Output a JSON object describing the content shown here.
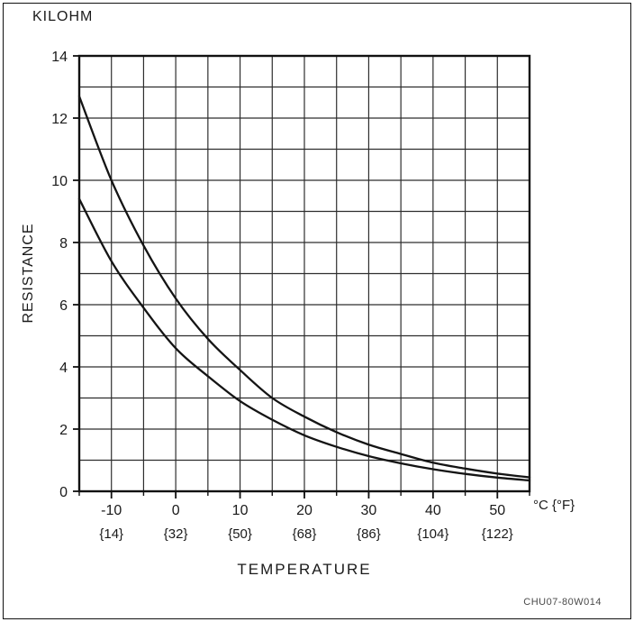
{
  "title": "KILOHM",
  "y_axis_title": "RESISTANCE",
  "x_axis_title": "TEMPERATURE",
  "x_unit_label": "°C {°F}",
  "watermark": "CHU07-80W014",
  "chart_data": {
    "type": "line",
    "title": "",
    "xlabel": "TEMPERATURE",
    "ylabel": "RESISTANCE (KILOHM)",
    "x": [
      -15,
      -10,
      -5,
      0,
      5,
      10,
      15,
      20,
      25,
      30,
      35,
      40,
      45,
      50,
      55
    ],
    "series": [
      {
        "name": "upper-curve",
        "values": [
          12.7,
          10.0,
          7.9,
          6.2,
          4.9,
          3.9,
          3.0,
          2.4,
          1.9,
          1.5,
          1.2,
          0.92,
          0.73,
          0.57,
          0.45
        ]
      },
      {
        "name": "lower-curve",
        "values": [
          9.4,
          7.4,
          5.9,
          4.6,
          3.7,
          2.9,
          2.3,
          1.8,
          1.43,
          1.13,
          0.9,
          0.71,
          0.56,
          0.44,
          0.35
        ]
      }
    ],
    "xlim": [
      -15,
      55
    ],
    "ylim": [
      0,
      14
    ],
    "x_ticks": [
      -10,
      0,
      10,
      20,
      30,
      40,
      50
    ],
    "x_tick_labels": [
      "-10",
      "0",
      "10",
      "20",
      "30",
      "40",
      "50"
    ],
    "x_tick_sublabels": [
      "{14}",
      "{32}",
      "{50}",
      "{68}",
      "{86}",
      "{104}",
      "{122}"
    ],
    "y_ticks": [
      0,
      2,
      4,
      6,
      8,
      10,
      12,
      14
    ],
    "grid": true,
    "grid_step_x": 5,
    "grid_step_y": 1,
    "line_color": "#141414",
    "grid_color": "#2e2e2e",
    "frame_color": "#111111"
  }
}
